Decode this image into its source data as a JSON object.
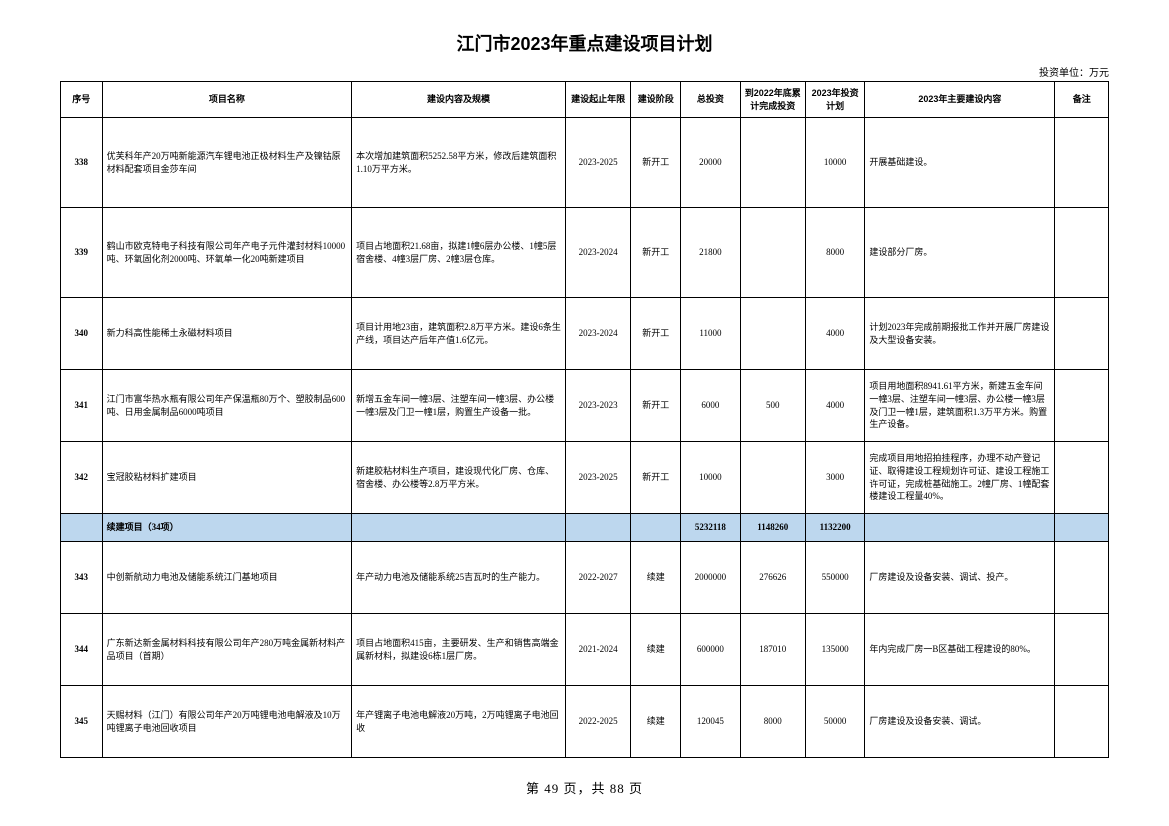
{
  "title": "江门市2023年重点建设项目计划",
  "unit_label": "投资单位：万元",
  "columns": {
    "seq": "序号",
    "name": "项目名称",
    "content": "建设内容及规模",
    "period": "建设起止年限",
    "phase": "建设阶段",
    "invest": "总投资",
    "done": "到2022年底累计完成投资",
    "plan": "2023年投资计划",
    "work": "2023年主要建设内容",
    "remark": "备注"
  },
  "rows": [
    {
      "seq": "338",
      "name": "优芙科年产20万吨新能源汽车锂电池正极材料生产及镍钴原材料配套项目金莎车间",
      "content": "本次增加建筑面积5252.58平方米，修改后建筑面积1.10万平方米。",
      "period": "2023-2025",
      "phase": "新开工",
      "invest": "20000",
      "done": "",
      "plan": "10000",
      "work": "开展基础建设。",
      "remark": ""
    },
    {
      "seq": "339",
      "name": "鹤山市欧克特电子科技有限公司年产电子元件灌封材料10000吨、环氧固化剂2000吨、环氧单一化20吨新建项目",
      "content": "项目占地面积21.68亩，拟建1幢6层办公楼、1幢5层宿舍楼、4幢3层厂房、2幢3层仓库。",
      "period": "2023-2024",
      "phase": "新开工",
      "invest": "21800",
      "done": "",
      "plan": "8000",
      "work": "建设部分厂房。",
      "remark": ""
    },
    {
      "seq": "340",
      "name": "新力科高性能稀土永磁材料项目",
      "content": "项目计用地23亩，建筑面积2.8万平方米。建设6条生产线，项目达产后年产值1.6亿元。",
      "period": "2023-2024",
      "phase": "新开工",
      "invest": "11000",
      "done": "",
      "plan": "4000",
      "work": "计划2023年完成前期报批工作并开展厂房建设及大型设备安装。",
      "remark": ""
    },
    {
      "seq": "341",
      "name": "江门市富华热水瓶有限公司年产保温瓶80万个、塑胶制品600吨、日用金属制品6000吨项目",
      "content": "新增五金车间一幢3层、注塑车间一幢3层、办公楼一幢3层及门卫一幢1层，购置生产设备一批。",
      "period": "2023-2023",
      "phase": "新开工",
      "invest": "6000",
      "done": "500",
      "plan": "4000",
      "work": "项目用地面积8941.61平方米，新建五金车间一幢3层、注塑车间一幢3层、办公楼一幢3层及门卫一幢1层，建筑面积1.3万平方米。购置生产设备。",
      "remark": ""
    },
    {
      "seq": "342",
      "name": "宝冠胶粘材料扩建项目",
      "content": "新建胶粘材料生产项目，建设现代化厂房、仓库、宿舍楼、办公楼等2.8万平方米。",
      "period": "2023-2025",
      "phase": "新开工",
      "invest": "10000",
      "done": "",
      "plan": "3000",
      "work": "完成项目用地招拍挂程序，办理不动产登记证、取得建设工程规划许可证、建设工程施工许可证，完成桩基础施工。2幢厂房、1幢配套楼建设工程量40%。",
      "remark": ""
    }
  ],
  "section": {
    "name": "续建项目（34项）",
    "invest": "5232118",
    "done": "1148260",
    "plan": "1132200"
  },
  "rows2": [
    {
      "seq": "343",
      "name": "中创新航动力电池及储能系统江门基地项目",
      "content": "年产动力电池及储能系统25吉瓦时的生产能力。",
      "period": "2022-2027",
      "phase": "续建",
      "invest": "2000000",
      "done": "276626",
      "plan": "550000",
      "work": "厂房建设及设备安装、调试、投产。",
      "remark": ""
    },
    {
      "seq": "344",
      "name": "广东新达新金属材料科技有限公司年产280万吨金属新材料产品项目（首期）",
      "content": "项目占地面积415亩，主要研发、生产和销售高端金属新材料，拟建设6栋1层厂房。",
      "period": "2021-2024",
      "phase": "续建",
      "invest": "600000",
      "done": "187010",
      "plan": "135000",
      "work": "年内完成厂房一B区基础工程建设的80%。",
      "remark": ""
    },
    {
      "seq": "345",
      "name": "天赐材料（江门）有限公司年产20万吨锂电池电解液及10万吨锂离子电池回收项目",
      "content": "年产锂离子电池电解液20万吨，2万吨锂离子电池回收",
      "period": "2022-2025",
      "phase": "续建",
      "invest": "120045",
      "done": "8000",
      "plan": "50000",
      "work": "厂房建设及设备安装、调试。",
      "remark": ""
    }
  ],
  "pager": "第 49 页，共 88 页"
}
